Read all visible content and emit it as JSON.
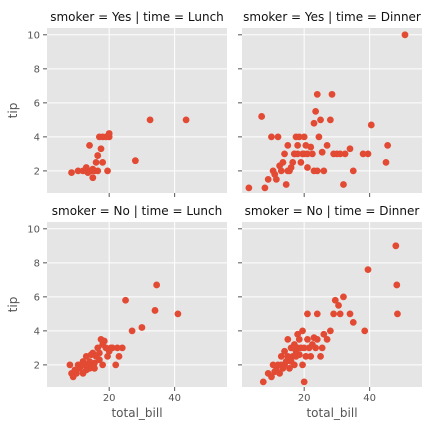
{
  "chart_data": {
    "type": "scatter",
    "xlabel": "total_bill",
    "ylabel": "tip",
    "xlim": [
      1,
      56
    ],
    "ylim": [
      0.7,
      10.4
    ],
    "xticks": [
      20,
      40
    ],
    "yticks": [
      2,
      4,
      6,
      8,
      10
    ],
    "grid": true,
    "point_color": "#E24A33",
    "panel_bg": "#E5E5E5",
    "panels": [
      {
        "title": "smoker = Yes | time = Lunch",
        "x": [
          8.5,
          10.5,
          12.0,
          13.0,
          13.5,
          14.0,
          14.5,
          15.0,
          15.0,
          15.5,
          16.0,
          16.5,
          16.5,
          17.0,
          17.5,
          18.0,
          18.0,
          19.0,
          19.5,
          20.0,
          20.0,
          28.0,
          32.5,
          43.5
        ],
        "y": [
          1.9,
          2.0,
          2.0,
          2.2,
          1.9,
          3.5,
          2.0,
          1.6,
          2.1,
          2.0,
          2.5,
          2.0,
          2.9,
          4.0,
          3.3,
          2.5,
          4.0,
          4.0,
          2.0,
          4.2,
          4.0,
          2.6,
          5.0,
          5.0
        ]
      },
      {
        "title": "smoker = Yes | time = Dinner",
        "x": [
          3.1,
          7.0,
          8.0,
          9.0,
          10.0,
          10.5,
          11.0,
          11.5,
          12.0,
          12.5,
          13.0,
          13.5,
          14.0,
          14.5,
          15.0,
          15.0,
          15.5,
          16.0,
          16.5,
          17.0,
          17.0,
          17.5,
          18.0,
          18.0,
          18.5,
          19.0,
          19.5,
          20.0,
          20.0,
          20.5,
          21.0,
          21.0,
          22.0,
          22.5,
          23.0,
          23.0,
          23.5,
          24.0,
          24.0,
          24.5,
          25.0,
          25.5,
          26.0,
          27.0,
          28.0,
          28.5,
          29.0,
          30.0,
          31.0,
          32.0,
          32.5,
          34.0,
          35.0,
          38.0,
          39.5,
          40.5,
          45.0,
          45.5,
          50.8
        ],
        "y": [
          1.0,
          5.2,
          1.0,
          1.5,
          4.0,
          2.0,
          1.8,
          1.5,
          4.0,
          2.3,
          2.0,
          2.5,
          3.0,
          1.2,
          2.0,
          3.5,
          2.0,
          2.2,
          2.5,
          3.0,
          3.0,
          4.0,
          3.5,
          3.0,
          4.0,
          2.5,
          3.0,
          3.0,
          4.0,
          3.5,
          3.0,
          2.2,
          3.4,
          3.0,
          4.8,
          2.0,
          5.5,
          6.5,
          2.0,
          4.0,
          5.0,
          3.1,
          2.0,
          3.5,
          5.0,
          6.5,
          3.0,
          3.0,
          3.0,
          1.2,
          3.0,
          3.3,
          2.0,
          3.0,
          3.0,
          4.7,
          2.5,
          3.5,
          10.0
        ]
      },
      {
        "title": "smoker = No | time = Lunch",
        "x": [
          8.0,
          8.5,
          9.0,
          9.5,
          10.0,
          10.5,
          11.0,
          11.5,
          12.0,
          12.0,
          12.5,
          13.0,
          13.0,
          13.5,
          14.0,
          14.0,
          14.5,
          15.0,
          15.0,
          15.5,
          15.5,
          16.0,
          16.5,
          17.0,
          17.0,
          17.5,
          18.0,
          18.0,
          18.5,
          19.0,
          19.5,
          20.0,
          20.5,
          21.0,
          22.0,
          22.5,
          23.0,
          24.0,
          25.0,
          27.0,
          30.0,
          34.0,
          34.5,
          41.0
        ],
        "y": [
          2.0,
          1.5,
          1.3,
          1.7,
          1.5,
          2.0,
          1.8,
          2.0,
          1.5,
          2.2,
          2.0,
          1.7,
          2.5,
          2.0,
          2.2,
          1.8,
          2.6,
          2.0,
          2.7,
          2.1,
          1.8,
          2.5,
          3.0,
          2.3,
          2.7,
          3.5,
          3.2,
          2.0,
          3.4,
          3.0,
          2.5,
          2.8,
          3.0,
          3.0,
          2.0,
          3.0,
          2.5,
          3.0,
          5.8,
          4.0,
          4.2,
          5.2,
          6.7,
          5.0
        ]
      },
      {
        "title": "smoker = No | time = Dinner",
        "x": [
          7.5,
          9.0,
          10.0,
          10.5,
          11.0,
          11.5,
          12.0,
          12.5,
          13.0,
          13.0,
          13.5,
          14.0,
          14.0,
          14.5,
          15.0,
          15.0,
          15.5,
          16.0,
          16.0,
          16.5,
          17.0,
          17.0,
          17.5,
          17.5,
          18.0,
          18.0,
          18.5,
          18.5,
          19.0,
          19.5,
          19.5,
          20.0,
          20.0,
          20.5,
          21.0,
          21.0,
          21.5,
          22.0,
          22.5,
          23.0,
          23.5,
          24.0,
          24.0,
          25.0,
          25.5,
          26.0,
          27.0,
          28.0,
          29.0,
          29.5,
          30.5,
          31.0,
          32.0,
          34.0,
          35.0,
          38.5,
          39.5,
          48.0,
          48.3,
          48.5
        ],
        "y": [
          1.0,
          1.5,
          1.3,
          2.0,
          1.6,
          1.7,
          2.0,
          1.5,
          2.5,
          2.0,
          1.8,
          2.0,
          2.8,
          2.2,
          2.5,
          3.5,
          1.8,
          2.2,
          3.0,
          2.5,
          2.0,
          3.2,
          2.8,
          2.5,
          3.0,
          3.8,
          2.6,
          3.5,
          3.0,
          2.0,
          4.0,
          1.0,
          3.0,
          2.5,
          3.5,
          5.0,
          3.0,
          2.5,
          3.2,
          3.6,
          3.0,
          3.5,
          5.0,
          2.5,
          3.0,
          3.8,
          3.5,
          4.0,
          5.0,
          5.8,
          5.5,
          5.0,
          6.0,
          5.0,
          4.5,
          4.0,
          7.6,
          9.0,
          6.7,
          5.0
        ]
      }
    ]
  }
}
